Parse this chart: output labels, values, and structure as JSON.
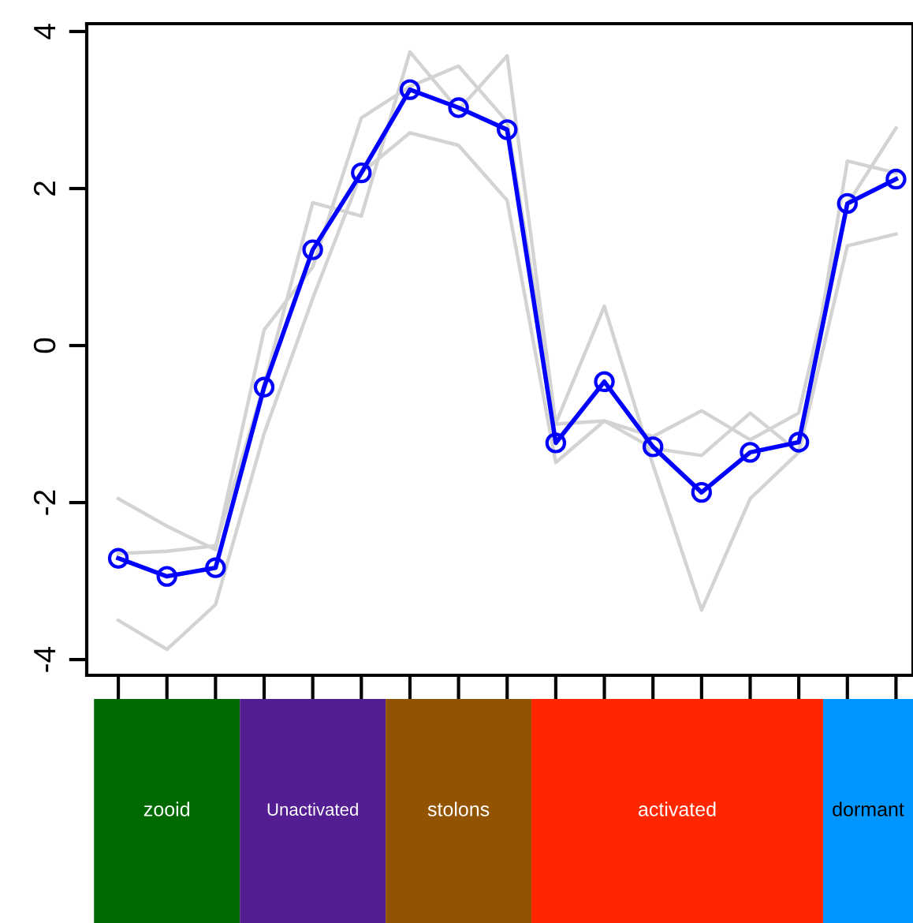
{
  "chart_data": [
    {
      "type": "line",
      "categories": [
        null,
        null,
        null,
        null,
        null,
        null,
        null,
        null,
        null,
        null,
        null,
        null,
        null,
        null,
        null,
        null,
        null
      ],
      "series": [
        {
          "color": "#d3d3d3",
          "marker": "none",
          "values": [
            -1.95,
            -2.3,
            -2.6,
            0.2,
            1.0,
            2.9,
            3.3,
            3.56,
            2.85,
            -0.99,
            0.5,
            -1.52,
            -3.37,
            -1.95,
            -1.36,
            2.35,
            2.2
          ]
        },
        {
          "color": "#d3d3d3",
          "marker": "none",
          "values": [
            -2.65,
            -2.62,
            -2.55,
            -0.5,
            1.82,
            1.65,
            3.74,
            3.0,
            3.69,
            -1.0,
            -0.96,
            -1.16,
            -0.83,
            -1.2,
            -0.86,
            1.8,
            2.77
          ]
        },
        {
          "color": "#d3d3d3",
          "marker": "none",
          "values": [
            -3.5,
            -3.87,
            -3.3,
            -1.12,
            0.6,
            2.2,
            2.71,
            2.55,
            1.85,
            -1.49,
            -0.96,
            -1.31,
            -1.4,
            -0.86,
            -1.36,
            1.27,
            1.42
          ]
        },
        {
          "color": "#0000ff",
          "marker": "circle",
          "values": [
            -2.71,
            -2.94,
            -2.83,
            -0.53,
            1.22,
            2.2,
            3.26,
            3.03,
            2.75,
            -1.24,
            -0.46,
            -1.29,
            -1.87,
            -1.36,
            -1.23,
            1.81,
            2.12
          ]
        }
      ],
      "ylim": [
        -4.2,
        4.1
      ],
      "yticks": [
        -4,
        -2,
        0,
        2,
        4
      ],
      "grid": false,
      "legend": false,
      "tick_labels": "y"
    },
    {
      "type": "other",
      "annotations": [
        "zooid",
        "Unactivated",
        "stolons",
        "activated",
        "dormant"
      ],
      "colors": [
        "#006a00",
        "#521e92",
        "#925400",
        "#ff2600",
        "#0096ff"
      ]
    }
  ]
}
